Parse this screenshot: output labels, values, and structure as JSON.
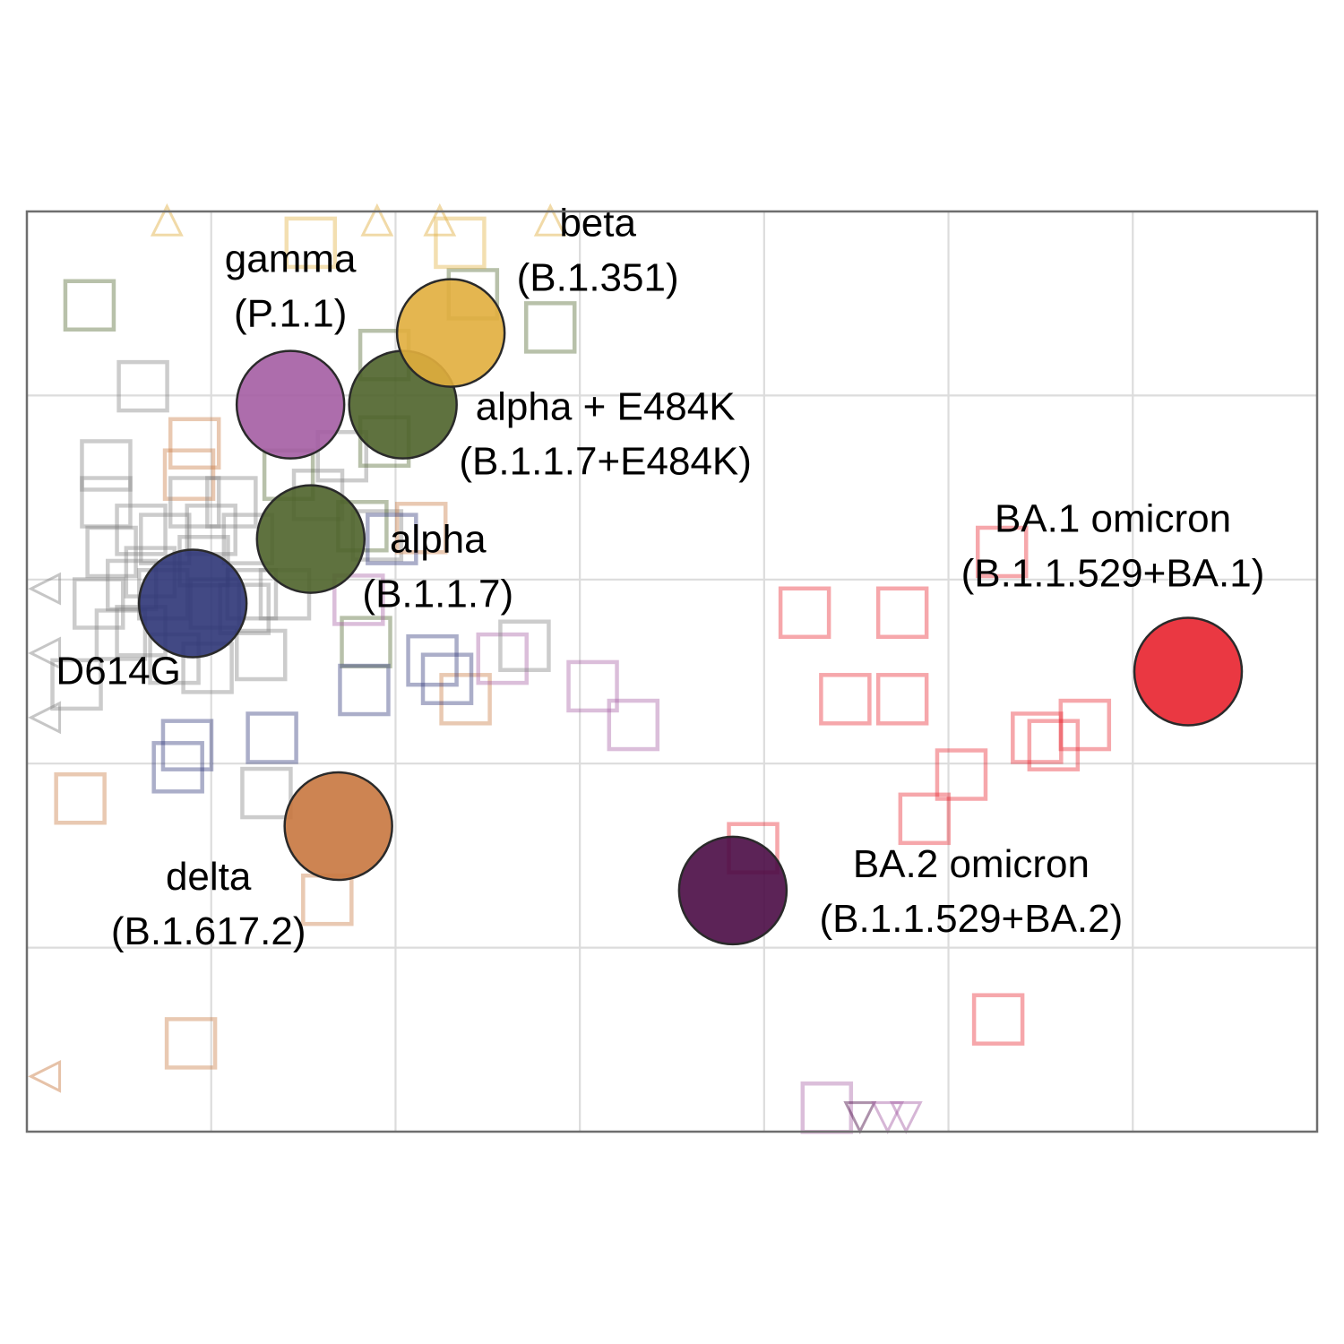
{
  "chart_data": {
    "type": "scatter",
    "title": "",
    "xlabel": "",
    "ylabel": "",
    "xlim": [
      0,
      7
    ],
    "ylim": [
      0,
      5
    ],
    "grid": true,
    "legend": "none",
    "antigens": [
      {
        "name": "D614G",
        "label_lines": [
          "D614G"
        ],
        "x": 0.9,
        "y": 2.87,
        "color": "#2e3577"
      },
      {
        "name": "alpha",
        "label_lines": [
          "alpha",
          "(B.1.1.7)"
        ],
        "x": 1.54,
        "y": 3.22,
        "color": "#4e632a"
      },
      {
        "name": "alpha + E484K",
        "label_lines": [
          "alpha + E484K",
          "(B.1.1.7+E484K)"
        ],
        "x": 2.04,
        "y": 3.95,
        "color": "#4e632a"
      },
      {
        "name": "gamma",
        "label_lines": [
          "gamma",
          "(P.1.1)"
        ],
        "x": 1.43,
        "y": 3.95,
        "color": "#a45da3"
      },
      {
        "name": "beta",
        "label_lines": [
          "beta",
          "(B.1.351)"
        ],
        "x": 2.3,
        "y": 4.34,
        "color": "#e1ae3d"
      },
      {
        "name": "delta",
        "label_lines": [
          "delta",
          "(B.1.617.2)"
        ],
        "x": 1.69,
        "y": 1.66,
        "color": "#c8773f"
      },
      {
        "name": "BA.1 omicron",
        "label_lines": [
          "BA.1 omicron",
          "(B.1.1.529+BA.1)"
        ],
        "x": 6.3,
        "y": 2.5,
        "color": "#e8222e"
      },
      {
        "name": "BA.2 omicron",
        "label_lines": [
          "BA.2 omicron",
          "(B.1.1.529+BA.2)"
        ],
        "x": 3.83,
        "y": 1.31,
        "color": "#4a0b45"
      }
    ],
    "sera": [
      {
        "x": 0.34,
        "y": 4.49,
        "color": "#4e632a"
      },
      {
        "x": 0.63,
        "y": 4.05,
        "color": "#808080"
      },
      {
        "x": 0.43,
        "y": 3.62,
        "color": "#808080"
      },
      {
        "x": 0.88,
        "y": 3.57,
        "color": "#c8773f"
      },
      {
        "x": 0.91,
        "y": 3.42,
        "color": "#808080"
      },
      {
        "x": 1.11,
        "y": 3.42,
        "color": "#808080"
      },
      {
        "x": 0.43,
        "y": 3.42,
        "color": "#808080"
      },
      {
        "x": 0.62,
        "y": 3.27,
        "color": "#808080"
      },
      {
        "x": 0.75,
        "y": 3.22,
        "color": "#808080"
      },
      {
        "x": 1.0,
        "y": 3.27,
        "color": "#808080"
      },
      {
        "x": 1.2,
        "y": 3.22,
        "color": "#808080"
      },
      {
        "x": 0.46,
        "y": 3.15,
        "color": "#808080"
      },
      {
        "x": 0.67,
        "y": 3.04,
        "color": "#808080"
      },
      {
        "x": 0.96,
        "y": 3.1,
        "color": "#808080"
      },
      {
        "x": 0.57,
        "y": 2.97,
        "color": "#808080"
      },
      {
        "x": 0.74,
        "y": 2.92,
        "color": "#808080"
      },
      {
        "x": 1.22,
        "y": 2.92,
        "color": "#808080"
      },
      {
        "x": 1.4,
        "y": 2.92,
        "color": "#808080"
      },
      {
        "x": 0.39,
        "y": 2.87,
        "color": "#808080"
      },
      {
        "x": 1.02,
        "y": 2.87,
        "color": "#808080"
      },
      {
        "x": 1.18,
        "y": 2.84,
        "color": "#808080"
      },
      {
        "x": 0.62,
        "y": 2.72,
        "color": "#808080"
      },
      {
        "x": 0.51,
        "y": 2.7,
        "color": "#808080"
      },
      {
        "x": 1.27,
        "y": 2.59,
        "color": "#808080"
      },
      {
        "x": 0.8,
        "y": 2.57,
        "color": "#808080"
      },
      {
        "x": 0.98,
        "y": 2.52,
        "color": "#808080"
      },
      {
        "x": 0.27,
        "y": 2.43,
        "color": "#808080"
      },
      {
        "x": 1.3,
        "y": 1.84,
        "color": "#808080"
      },
      {
        "x": 1.58,
        "y": 3.46,
        "color": "#808080"
      },
      {
        "x": 1.71,
        "y": 3.67,
        "color": "#808080"
      },
      {
        "x": 1.42,
        "y": 3.57,
        "color": "#4e632a"
      },
      {
        "x": 1.9,
        "y": 3.24,
        "color": "#808080"
      },
      {
        "x": 1.82,
        "y": 3.29,
        "color": "#4e632a"
      },
      {
        "x": 1.84,
        "y": 2.66,
        "color": "#4e632a"
      },
      {
        "x": 1.94,
        "y": 4.22,
        "color": "#4e632a"
      },
      {
        "x": 1.94,
        "y": 3.75,
        "color": "#4e632a"
      },
      {
        "x": 2.42,
        "y": 4.55,
        "color": "#4e632a"
      },
      {
        "x": 2.84,
        "y": 4.37,
        "color": "#4e632a"
      },
      {
        "x": 1.54,
        "y": 4.83,
        "color": "#e1ae3d"
      },
      {
        "x": 2.35,
        "y": 4.83,
        "color": "#e1ae3d"
      },
      {
        "x": 0.91,
        "y": 3.74,
        "color": "#c8773f"
      },
      {
        "x": 2.14,
        "y": 3.28,
        "color": "#c8773f"
      },
      {
        "x": 2.38,
        "y": 2.35,
        "color": "#c8773f"
      },
      {
        "x": 0.29,
        "y": 1.81,
        "color": "#c8773f"
      },
      {
        "x": 1.63,
        "y": 1.26,
        "color": "#c8773f"
      },
      {
        "x": 0.89,
        "y": 0.48,
        "color": "#c8773f"
      },
      {
        "x": 1.98,
        "y": 3.22,
        "color": "#2e3577"
      },
      {
        "x": 1.83,
        "y": 2.4,
        "color": "#2e3577"
      },
      {
        "x": 2.2,
        "y": 2.56,
        "color": "#2e3577"
      },
      {
        "x": 2.28,
        "y": 2.46,
        "color": "#2e3577"
      },
      {
        "x": 1.33,
        "y": 2.14,
        "color": "#2e3577"
      },
      {
        "x": 0.87,
        "y": 2.1,
        "color": "#2e3577"
      },
      {
        "x": 0.82,
        "y": 1.98,
        "color": "#2e3577"
      },
      {
        "x": 1.8,
        "y": 2.89,
        "color": "#a45da3"
      },
      {
        "x": 2.58,
        "y": 2.57,
        "color": "#a45da3"
      },
      {
        "x": 3.07,
        "y": 2.42,
        "color": "#a45da3"
      },
      {
        "x": 3.29,
        "y": 2.21,
        "color": "#a45da3"
      },
      {
        "x": 4.34,
        "y": 0.13,
        "color": "#a45da3"
      },
      {
        "x": 2.7,
        "y": 2.64,
        "color": "#808080"
      },
      {
        "x": 3.94,
        "y": 1.54,
        "color": "#e8222e"
      },
      {
        "x": 5.29,
        "y": 3.15,
        "color": "#e8222e"
      },
      {
        "x": 4.22,
        "y": 2.82,
        "color": "#e8222e"
      },
      {
        "x": 4.75,
        "y": 2.82,
        "color": "#e8222e"
      },
      {
        "x": 4.44,
        "y": 2.35,
        "color": "#e8222e"
      },
      {
        "x": 4.75,
        "y": 2.35,
        "color": "#e8222e"
      },
      {
        "x": 5.74,
        "y": 2.21,
        "color": "#e8222e"
      },
      {
        "x": 5.48,
        "y": 2.14,
        "color": "#e8222e"
      },
      {
        "x": 5.57,
        "y": 2.1,
        "color": "#e8222e"
      },
      {
        "x": 5.07,
        "y": 1.94,
        "color": "#e8222e"
      },
      {
        "x": 4.87,
        "y": 1.7,
        "color": "#e8222e"
      },
      {
        "x": 5.27,
        "y": 0.61,
        "color": "#e8222e"
      }
    ],
    "edge_markers": [
      {
        "x": 0.76,
        "y": 4.95,
        "direction": "up",
        "color": "#e1ae3d"
      },
      {
        "x": 1.9,
        "y": 4.95,
        "direction": "up",
        "color": "#e1ae3d"
      },
      {
        "x": 2.24,
        "y": 4.95,
        "direction": "up",
        "color": "#e1ae3d"
      },
      {
        "x": 2.84,
        "y": 4.95,
        "direction": "up",
        "color": "#e1ae3d"
      },
      {
        "x": 0.1,
        "y": 2.95,
        "direction": "left",
        "color": "#808080"
      },
      {
        "x": 0.1,
        "y": 2.6,
        "direction": "left",
        "color": "#808080"
      },
      {
        "x": 0.1,
        "y": 2.25,
        "direction": "left",
        "color": "#808080"
      },
      {
        "x": 0.1,
        "y": 0.3,
        "direction": "left",
        "color": "#c8773f"
      },
      {
        "x": 4.52,
        "y": 0.08,
        "direction": "down",
        "color": "#4a0b45"
      },
      {
        "x": 4.67,
        "y": 0.08,
        "direction": "down",
        "color": "#a45da3"
      },
      {
        "x": 4.77,
        "y": 0.08,
        "direction": "down",
        "color": "#a45da3"
      }
    ]
  }
}
